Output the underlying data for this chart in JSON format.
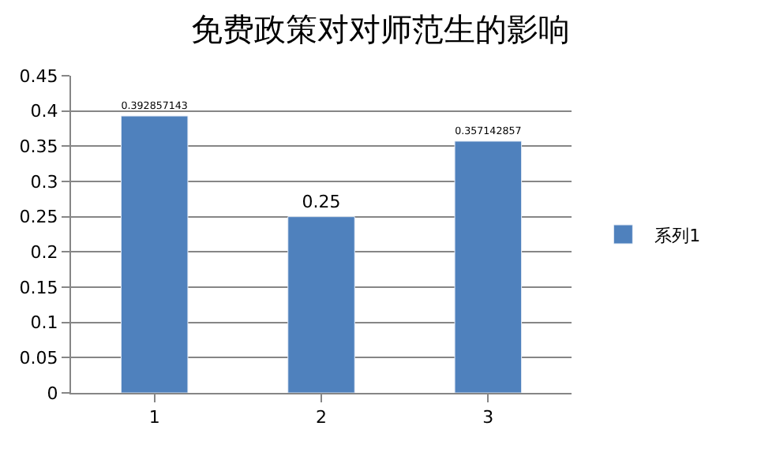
{
  "chart_data": {
    "type": "bar",
    "title": "免费政策对对师范生的影响",
    "categories": [
      "1",
      "2",
      "3"
    ],
    "series": [
      {
        "name": "系列1",
        "color": "#4f81bd",
        "values": [
          0.392857143,
          0.25,
          0.357142857
        ]
      }
    ],
    "ylim": [
      0,
      0.45
    ],
    "yticks": [
      0,
      0.05,
      0.1,
      0.15,
      0.2,
      0.25,
      0.3,
      0.35,
      0.4,
      0.45
    ],
    "grid": "y",
    "legend": "right",
    "data_labels": true
  }
}
